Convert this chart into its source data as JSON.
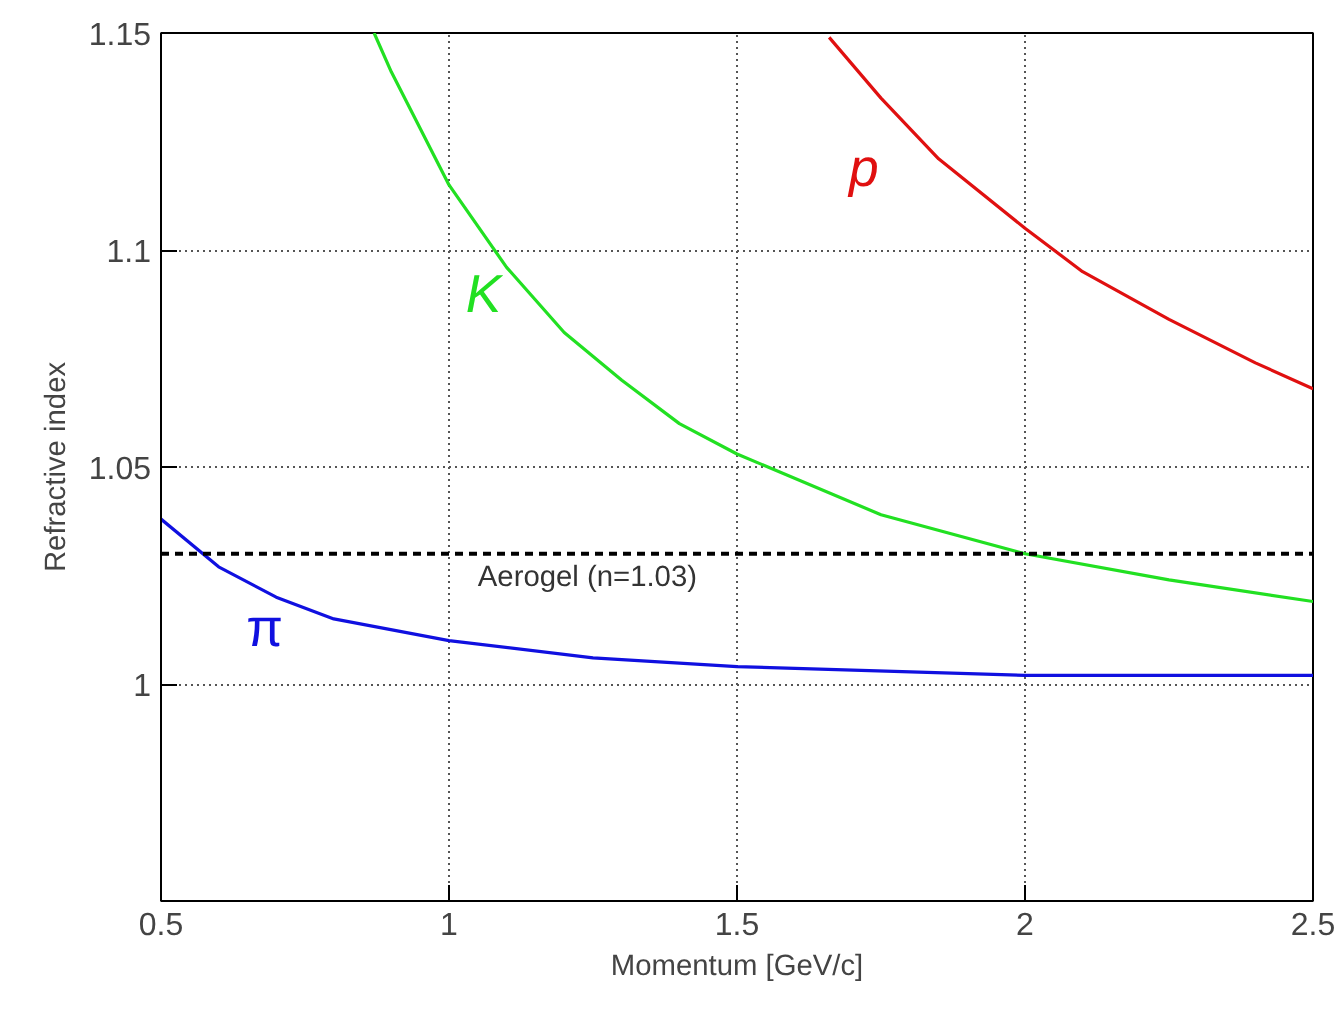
{
  "chart_data": {
    "type": "line",
    "xlabel": "Momentum [GeV/c]",
    "ylabel": "Refractive index",
    "xlim": [
      0.5,
      2.5
    ],
    "ylim": [
      0.95,
      1.15
    ],
    "xticks": [
      0.5,
      1,
      1.5,
      2,
      2.5
    ],
    "yticks": [
      {
        "value": 0.95,
        "label": null
      },
      1,
      1.05,
      1.1,
      1.15
    ],
    "grid": true,
    "marker": "none",
    "line_style": "solid",
    "series": [
      {
        "name": "π",
        "color": "#1010e0",
        "x": [
          0.5,
          0.6,
          0.7,
          0.8,
          1.0,
          1.25,
          1.5,
          2.0,
          2.5
        ],
        "values": [
          1.038,
          1.027,
          1.02,
          1.015,
          1.01,
          1.006,
          1.004,
          1.002,
          1.002
        ]
      },
      {
        "name": "K",
        "color": "#22e022",
        "x": [
          0.87,
          0.9,
          1.0,
          1.1,
          1.2,
          1.3,
          1.4,
          1.5,
          1.75,
          2.0,
          2.25,
          2.5
        ],
        "values": [
          1.15,
          1.141,
          1.115,
          1.096,
          1.081,
          1.07,
          1.06,
          1.053,
          1.039,
          1.03,
          1.024,
          1.019
        ]
      },
      {
        "name": "p",
        "color": "#e01010",
        "x": [
          1.66,
          1.75,
          1.85,
          2.0,
          2.1,
          2.25,
          2.4,
          2.5
        ],
        "values": [
          1.149,
          1.135,
          1.121,
          1.105,
          1.095,
          1.084,
          1.074,
          1.068
        ]
      }
    ],
    "ref_lines": [
      {
        "axis": "y",
        "value": 1.03,
        "label": "Aerogel (n=1.03)",
        "color": "#000000",
        "line_style": "dashed"
      }
    ]
  }
}
